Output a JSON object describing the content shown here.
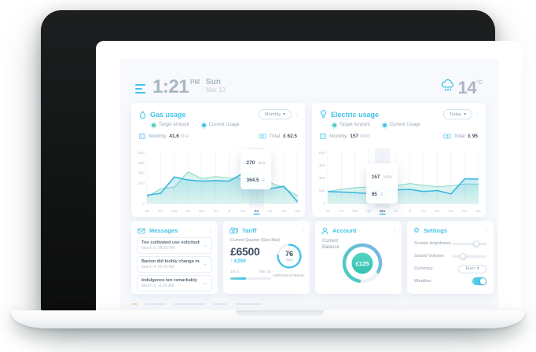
{
  "colors": {
    "accent": "#41c2e9",
    "teal": "#4ecfc0",
    "text_dark": "#45566a",
    "text_muted": "#9aa8b6"
  },
  "header": {
    "time": "1:21",
    "meridiem": "PM",
    "day": "Sun",
    "date": "Mar 13",
    "temperature": "14",
    "temp_unit": "°C"
  },
  "icons": {
    "dots": "⋮",
    "caret": "▾",
    "arrow": "→",
    "gear": "⚙",
    "delta_up": "↑"
  },
  "chart_data": [
    {
      "type": "area",
      "title": "Gas usage",
      "x": [
        "Ja",
        "Fe",
        "Ma",
        "Ap",
        "Ma",
        "Ju",
        "Jl",
        "Au",
        "Se",
        "Oc",
        "No",
        "De"
      ],
      "series": [
        {
          "name": "Target Amount",
          "values": [
            65,
            145,
            160,
            310,
            245,
            265,
            250,
            245,
            230,
            205,
            150,
            75
          ]
        },
        {
          "name": "Current Usage",
          "values": [
            80,
            100,
            260,
            230,
            220,
            225,
            220,
            295,
            270,
            145,
            170,
            15
          ]
        }
      ],
      "ylim": [
        0,
        500
      ],
      "yticks": [
        500,
        400,
        300,
        200,
        0
      ],
      "selected_index": 8,
      "tooltip": {
        "v1": "270",
        "u1": "litre",
        "v2": "364.5",
        "u2": "£"
      },
      "colors": {
        "current": "#3ab5e2",
        "target": "#82d7c6",
        "marker": "#3ab5e2"
      },
      "legend_position": "top",
      "grid": "vertical"
    },
    {
      "type": "area",
      "title": "Electric usage",
      "x": [
        "Ja",
        "Fe",
        "Ma",
        "Ap",
        "Ma",
        "Ju",
        "Jl",
        "Au",
        "Se",
        "Oc",
        "No",
        "De"
      ],
      "series": [
        {
          "name": "Target Amount",
          "values": [
            140,
            168,
            185,
            195,
            205,
            210,
            235,
            215,
            198,
            208,
            230,
            228
          ]
        },
        {
          "name": "Current Usage",
          "values": [
            140,
            135,
            128,
            115,
            157,
            160,
            165,
            140,
            152,
            112,
            290,
            288
          ]
        }
      ],
      "ylim": [
        0,
        600
      ],
      "yticks": [
        600,
        450,
        300,
        150,
        0
      ],
      "selected_index": 4,
      "tooltip": {
        "v1": "157",
        "u1": "kWh",
        "v2": "95",
        "u2": "£"
      },
      "colors": {
        "current": "#3ab5e2",
        "target": "#82d7c6",
        "marker": "#49cdbb"
      },
      "legend_position": "top",
      "grid": "vertical"
    }
  ],
  "gas_card": {
    "title": "Gas usage",
    "period": "Monthly",
    "legend": [
      "Target Amount",
      "Current Usage"
    ],
    "usage_label": "Monthly",
    "usage_value": "41.6",
    "usage_unit": "litre",
    "total_label": "Total",
    "total_value": "£ 62.5"
  },
  "electric_card": {
    "title": "Electric usage",
    "period": "Today",
    "legend": [
      "Target Amount",
      "Current Usage"
    ],
    "usage_label": "Monthly",
    "usage_value": "157",
    "usage_unit": "kWh",
    "total_label": "Total",
    "total_value": "£ 95"
  },
  "messages_card": {
    "title": "Messages",
    "items": [
      {
        "title": "Too cultivated use solicitude",
        "date": "March 5, 08:55 PM"
      },
      {
        "title": "Barton did feebly change man",
        "date": "March 4, 02:30 AM"
      },
      {
        "title": "Indulgence ten remarkably",
        "date": "March 2, 11:20 AM"
      }
    ]
  },
  "tariff_card": {
    "title": "Tariff",
    "subtitle": "Current Quarter (Dec-Mar)",
    "amount": "£6500",
    "delta": "£250",
    "range_start": "Jan 1",
    "range_end": "Mar 31",
    "progress_percent": 38,
    "ring_value": "76",
    "ring_unit": "days",
    "ring_percent": 76,
    "caption": "Until End of March"
  },
  "account_card": {
    "title": "Account",
    "balance_label": "Current Balance",
    "balance_value": "£125",
    "arc_percent": 80
  },
  "settings_card": {
    "title": "Settings",
    "brightness_label": "Screen brightness",
    "brightness_percent": 70,
    "volume_label": "Sound Volume",
    "volume_percent": 32,
    "currency_label": "Currency",
    "currency_value": "Euro",
    "weather_label": "Weather",
    "weather_on": true
  }
}
